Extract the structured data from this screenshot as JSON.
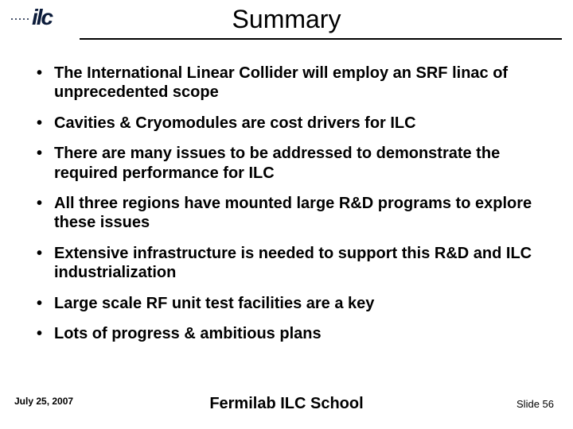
{
  "logo": {
    "text": "ilc",
    "dot_count": 5,
    "color": "#0b1b3a"
  },
  "title": "Summary",
  "bullets": [
    "The International Linear Collider will employ an SRF linac of unprecedented scope",
    "Cavities & Cryomodules are cost drivers for ILC",
    "There are many issues to be addressed to demonstrate the required performance for ILC",
    "All three regions have mounted large R&D programs to explore these issues",
    "Extensive infrastructure is needed to support this R&D and ILC industrialization",
    "Large scale RF unit test facilities are a key",
    "Lots of progress & ambitious plans"
  ],
  "footer": {
    "date": "July 25, 2007",
    "center": "Fermilab ILC School",
    "slide": "Slide 56"
  },
  "style": {
    "background_color": "#ffffff",
    "text_color": "#000000",
    "title_fontsize": 32,
    "bullet_fontsize": 20,
    "footer_date_fontsize": 12,
    "footer_center_fontsize": 20,
    "footer_slide_fontsize": 13
  }
}
